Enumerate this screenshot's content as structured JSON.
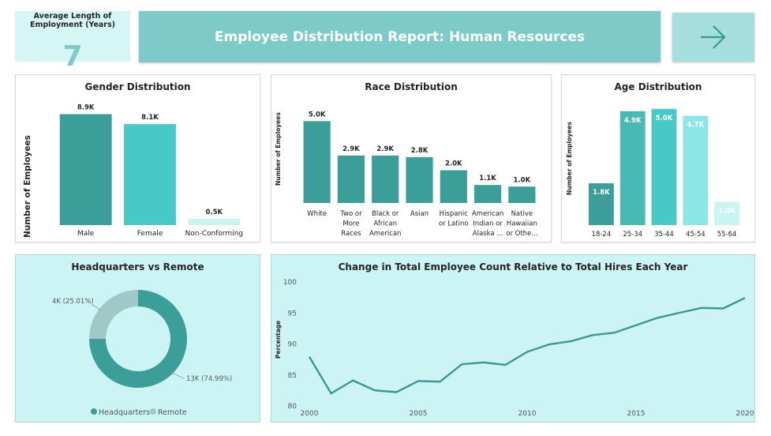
{
  "kpi": {
    "label": "Average Length of Employment (Years)",
    "value": "7"
  },
  "header": {
    "title": "Employee Distribution Report: Human Resources"
  },
  "nav": {
    "icon": "arrow-right-icon"
  },
  "colors": {
    "teal_dark": "#3b9e98",
    "teal_mid": "#49c9c5",
    "teal_light": "#cbf3f3",
    "banner": "#7ecac8",
    "remote": "#9fc8c6",
    "line": "#3a9893"
  },
  "chart_data": [
    {
      "id": "gender",
      "type": "bar",
      "title": "Gender Distribution",
      "ylabel": "Number of Employees",
      "xlabel": "",
      "categories": [
        "Male",
        "Female",
        "Non-Conforming"
      ],
      "values": [
        8.9,
        8.1,
        0.5
      ],
      "data_labels": [
        "8.9K",
        "8.1K",
        "0.5K"
      ],
      "bar_colors": [
        "#3b9e98",
        "#49c9c5",
        "#cbf3f3"
      ],
      "ylim": [
        0,
        9.5
      ]
    },
    {
      "id": "race",
      "type": "bar",
      "title": "Race Distribution",
      "ylabel": "Number of Employees",
      "xlabel": "",
      "categories": [
        [
          "White"
        ],
        [
          "Two or",
          "More",
          "Races"
        ],
        [
          "Black or",
          "African",
          "American"
        ],
        [
          "Asian"
        ],
        [
          "Hispanic",
          "or Latino"
        ],
        [
          "American",
          "Indian or",
          "Alaska ..."
        ],
        [
          "Native",
          "Hawaiian",
          "or Othe..."
        ]
      ],
      "values": [
        5.0,
        2.9,
        2.9,
        2.8,
        2.0,
        1.1,
        1.0
      ],
      "data_labels": [
        "5.0K",
        "2.9K",
        "2.9K",
        "2.8K",
        "2.0K",
        "1.1K",
        "1.0K"
      ],
      "bar_colors": [
        "#3b9e98"
      ],
      "ylim": [
        0,
        5.5
      ]
    },
    {
      "id": "age",
      "type": "bar",
      "title": "Age Distribution",
      "ylabel": "Number of Employees",
      "xlabel": "",
      "categories": [
        "18-24",
        "25-34",
        "35-44",
        "45-54",
        "55-64"
      ],
      "values": [
        1.8,
        4.9,
        5.0,
        4.7,
        1.0
      ],
      "data_labels": [
        "1.8K",
        "4.9K",
        "5.0K",
        "4.7K",
        "1.0K"
      ],
      "bar_colors": [
        "#3b9e98",
        "#49b9b3",
        "#49c9c5",
        "#8ce6e6",
        "#c9f4f4"
      ],
      "ylim": [
        0,
        5.3
      ]
    },
    {
      "id": "location",
      "type": "pie",
      "donut": true,
      "title": "Headquarters vs Remote",
      "categories": [
        "Headquarters",
        "Remote"
      ],
      "values": [
        74.99,
        25.01
      ],
      "data_labels": [
        "13K (74.99%)",
        "4K (25.01%)"
      ],
      "colors": [
        "#3b9e98",
        "#9fc8c6"
      ],
      "legend": "bottom"
    },
    {
      "id": "trend",
      "type": "line",
      "title": "Change in Total Employee Count Relative to Total Hires Each Year",
      "xlabel": "",
      "ylabel": "Percentage",
      "x": [
        2000,
        2001,
        2002,
        2003,
        2004,
        2005,
        2006,
        2007,
        2008,
        2009,
        2010,
        2011,
        2012,
        2013,
        2014,
        2015,
        2016,
        2017,
        2018,
        2019,
        2020
      ],
      "values": [
        87.8,
        81.9,
        84.0,
        82.4,
        82.1,
        83.9,
        83.8,
        86.6,
        86.9,
        86.5,
        88.6,
        89.8,
        90.3,
        91.3,
        91.7,
        92.9,
        94.1,
        94.9,
        95.7,
        95.6,
        97.3
      ],
      "x_ticks": [
        2000,
        2005,
        2010,
        2015,
        2020
      ],
      "y_ticks": [
        80,
        85,
        90,
        95,
        100
      ],
      "ylim": [
        80,
        100
      ],
      "grid": false
    }
  ]
}
